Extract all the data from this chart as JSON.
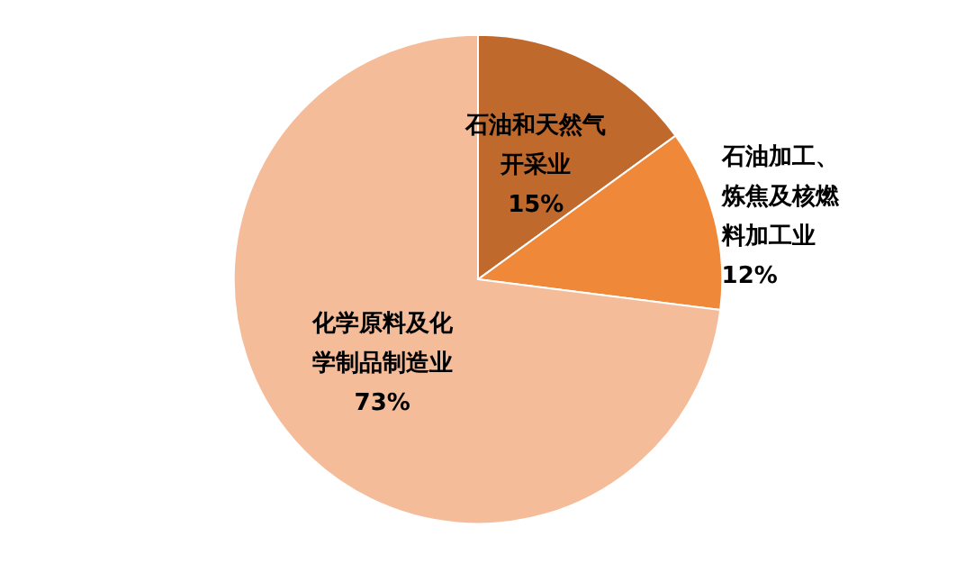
{
  "chart_data": {
    "type": "pie",
    "categories": [
      "石油和天然气开采业",
      "石油加工、炼焦及核燃料加工业",
      "化学原料及化学制品制造业"
    ],
    "values": [
      15,
      12,
      73
    ],
    "colors": [
      "#c0692c",
      "#f0883a",
      "#f5bc9a"
    ],
    "value_labels": [
      "15%",
      "12%",
      "73%"
    ],
    "legend": false
  }
}
